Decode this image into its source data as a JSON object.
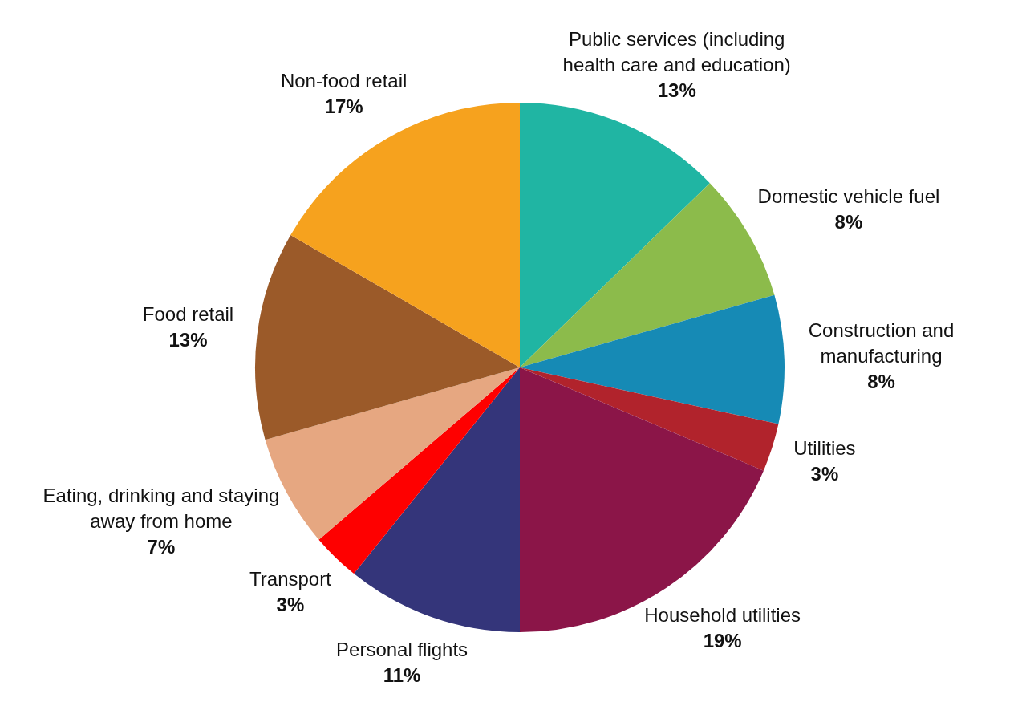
{
  "chart_data": {
    "type": "pie",
    "categories": [
      "Public services (including health care and education)",
      "Domestic vehicle fuel",
      "Construction and manufacturing",
      "Utilities",
      "Household utilities",
      "Personal flights",
      "Transport",
      "Eating, drinking and staying away from home",
      "Food retail",
      "Non-food retail"
    ],
    "values": [
      13,
      8,
      8,
      3,
      19,
      11,
      3,
      7,
      13,
      17
    ],
    "value_labels": [
      "13%",
      "8%",
      "8%",
      "3%",
      "19%",
      "11%",
      "3%",
      "7%",
      "13%",
      "17%"
    ],
    "colors": [
      "#20b5a3",
      "#8cbb4b",
      "#168ab5",
      "#b1232c",
      "#8b1548",
      "#34357a",
      "#fe0000",
      "#e6a781",
      "#9b5a29",
      "#f6a21e"
    ],
    "legend": false
  }
}
